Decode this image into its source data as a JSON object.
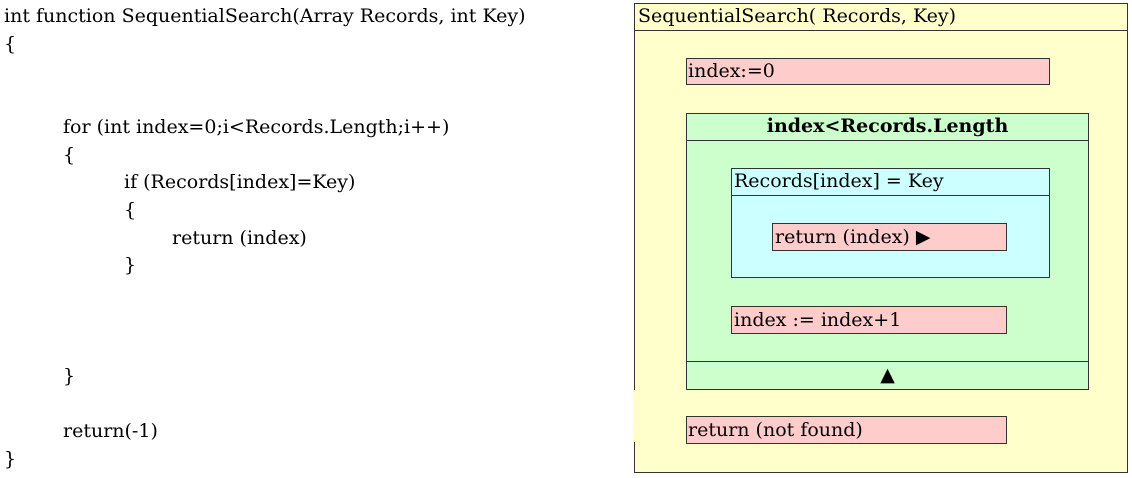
{
  "code": {
    "lines": [
      "int function SequentialSearch(Array Records, int Key)",
      "{",
      "for (int index=0;i<Records.Length;i++)",
      "{",
      "if (Records[index]=Key)",
      "{",
      "return (index)",
      "}",
      "}",
      "return(-1)",
      "}"
    ]
  },
  "nsd": {
    "title": "SequentialSearch( Records, Key)",
    "init": "index:=0",
    "loop_condition": "index<Records.Length",
    "if_condition": "Records[index] = Key",
    "return_index": "return (index) ▶",
    "increment": "index := index+1",
    "loop_end": "▲",
    "return_not_found": "return (not found)"
  },
  "colors": {
    "outer": "#ffffcc",
    "action": "#ffcccc",
    "loop": "#ccffcc",
    "condition": "#ccffff"
  }
}
